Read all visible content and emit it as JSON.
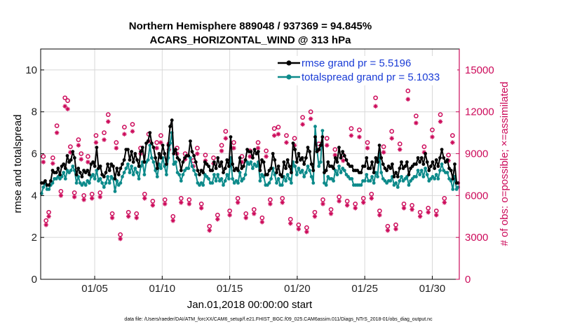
{
  "chart_data": {
    "type": "line",
    "title_line1": "Northern Hemisphere 889048 / 937369 = 94.845%",
    "title_line2": "ACARS_HORIZONTAL_WIND @ 313 hPa",
    "ylabel_left": "rmse and totalspread",
    "ylabel_right": "# of obs: o=possible; ×=assimilated",
    "xlabel": "Jan.01,2018 00:00:00 start",
    "footnote": "data file: /Users/raeder/DAI/ATM_forcXX/CAM6_setup/f.e21.FHIST_BGC.f09_025.CAM6assim.011/Diags_NTrS_2018-01/obs_diag_output.nc",
    "x_tick_labels": [
      "01/05",
      "01/10",
      "01/15",
      "01/20",
      "01/25",
      "01/30"
    ],
    "x_tick_days": [
      5,
      10,
      15,
      20,
      25,
      30
    ],
    "xlim": [
      1,
      32
    ],
    "ylim_left": [
      0,
      11
    ],
    "ylim_right": [
      0,
      16500
    ],
    "y_ticks_left": [
      "0",
      "2",
      "4",
      "6",
      "8",
      "10"
    ],
    "y_ticks_right": [
      "0",
      "3000",
      "6000",
      "9000",
      "12000",
      "15000"
    ],
    "grid": true,
    "legend_position": "top-right",
    "colors": {
      "rmse": "#000000",
      "spread": "#0c8a8a",
      "obs": "#cc0a5a",
      "legend_text": "#1a3cd6"
    },
    "series": [
      {
        "name": "rmse grand pr = 5.5196",
        "key": "rmse",
        "values": [
          4.6,
          4.6,
          4.7,
          4.5,
          4.5,
          4.7,
          5.2,
          5.1,
          5.1,
          5.3,
          5.0,
          5.4,
          5.5,
          5.3,
          5.9,
          5.6,
          5.7,
          6.1,
          5.8,
          5.0,
          5.3,
          5.1,
          4.9,
          5.2,
          5.1,
          5.2,
          5.0,
          5.5,
          5.6,
          5.4,
          6.3,
          5.3,
          5.4,
          5.0,
          4.9,
          5.1,
          5.5,
          5.2,
          5.5,
          5.4,
          4.8,
          5.3,
          5.0,
          5.3,
          5.5,
          5.7,
          6.2,
          6.2,
          5.7,
          6.1,
          5.6,
          6.0,
          5.7,
          5.4,
          6.1,
          6.3,
          5.6,
          6.5,
          6.6,
          7.0,
          6.5,
          6.3,
          5.8,
          5.3,
          6.0,
          5.8,
          6.4,
          6.0,
          5.5,
          6.4,
          7.3,
          7.6,
          6.0,
          6.2,
          5.8,
          5.7,
          5.2,
          5.6,
          5.8,
          5.9,
          5.9,
          6.6,
          6.1,
          5.9,
          5.6,
          5.2,
          5.0,
          5.2,
          5.1,
          5.6,
          5.5,
          5.4,
          5.2,
          5.2,
          5.6,
          5.3,
          5.8,
          5.4,
          5.6,
          5.1,
          5.3,
          5.7,
          5.4,
          6.8,
          5.5,
          5.2,
          5.3,
          5.2,
          5.8,
          5.3,
          5.4,
          5.7,
          6.2,
          6.1,
          6.1,
          5.8,
          6.2,
          6.0,
          6.1,
          5.2,
          5.7,
          5.6,
          5.0,
          5.0,
          5.2,
          5.3,
          6.0,
          5.7,
          5.1,
          5.4,
          5.0,
          4.9,
          5.6,
          5.3,
          5.7,
          5.4,
          5.1,
          6.5,
          6.2,
          5.6,
          6.0,
          5.7,
          5.8,
          5.5,
          5.8,
          6.3,
          6.1,
          5.5,
          5.2,
          6.8,
          6.1,
          6.2,
          6.4,
          6.8,
          5.1,
          5.2,
          5.6,
          5.4,
          5.4,
          5.3,
          5.8,
          5.6,
          6.3,
          5.8,
          6.1,
          5.9,
          5.7,
          5.5,
          5.4,
          5.4,
          5.2,
          5.2,
          5.2,
          5.1,
          5.1,
          5.4,
          5.4,
          5.8,
          5.3,
          5.3,
          5.6,
          5.1,
          5.8,
          5.6,
          6.4,
          5.8,
          5.5,
          5.3,
          5.2,
          5.4,
          5.3,
          5.5,
          4.9,
          5.1,
          4.9,
          5.3,
          5.6,
          5.3,
          5.4,
          5.6,
          5.0,
          5.3,
          5.4,
          5.5,
          5.5,
          5.8,
          5.6,
          5.8,
          5.5,
          6.0,
          5.6,
          5.2,
          5.4,
          5.6,
          5.3,
          5.7,
          5.4,
          5.8,
          6.2,
          5.8,
          5.6,
          5.7,
          5.3,
          5.2,
          4.8,
          5.5,
          4.6,
          4.6
        ]
      },
      {
        "name": "totalspread grand pr = 5.1033",
        "key": "spread",
        "values": [
          4.1,
          4.4,
          4.6,
          4.3,
          4.3,
          4.5,
          4.6,
          4.8,
          4.8,
          4.9,
          4.8,
          4.9,
          5.1,
          4.8,
          5.2,
          5.1,
          5.2,
          5.4,
          5.2,
          4.6,
          4.9,
          4.6,
          4.5,
          4.6,
          4.5,
          4.7,
          4.6,
          4.9,
          5.0,
          4.8,
          5.2,
          4.7,
          4.8,
          4.6,
          4.4,
          4.6,
          4.9,
          4.6,
          4.9,
          4.8,
          4.2,
          4.7,
          4.5,
          4.6,
          4.9,
          5.1,
          5.3,
          5.5,
          5.1,
          5.4,
          5.0,
          5.3,
          5.1,
          4.8,
          5.4,
          5.6,
          5.0,
          5.6,
          5.7,
          6.4,
          5.8,
          5.6,
          5.2,
          4.9,
          5.5,
          5.3,
          5.8,
          5.4,
          5.0,
          5.8,
          6.5,
          7.0,
          5.5,
          5.6,
          5.1,
          5.0,
          4.7,
          5.0,
          5.2,
          5.3,
          5.3,
          5.8,
          5.4,
          5.2,
          5.0,
          4.6,
          4.5,
          4.6,
          4.5,
          5.0,
          4.9,
          4.8,
          4.6,
          4.6,
          5.0,
          4.7,
          5.0,
          4.7,
          4.8,
          4.5,
          4.7,
          5.0,
          4.8,
          5.8,
          4.8,
          4.6,
          4.7,
          4.6,
          5.1,
          4.7,
          4.8,
          5.0,
          5.6,
          5.5,
          5.6,
          5.3,
          5.5,
          5.4,
          5.6,
          4.7,
          5.0,
          4.9,
          4.5,
          4.5,
          4.6,
          4.8,
          5.3,
          5.0,
          4.6,
          4.8,
          4.5,
          4.5,
          4.9,
          4.7,
          5.0,
          4.8,
          4.6,
          5.6,
          5.4,
          5.0,
          5.3,
          5.1,
          5.2,
          4.9,
          5.1,
          5.4,
          5.2,
          4.9,
          4.6,
          7.3,
          6.2,
          5.4,
          5.6,
          7.1,
          4.6,
          4.5,
          4.9,
          4.8,
          4.8,
          4.7,
          5.2,
          5.0,
          5.4,
          5.1,
          5.3,
          5.2,
          5.0,
          4.9,
          4.8,
          4.8,
          4.5,
          4.5,
          4.5,
          4.5,
          4.5,
          4.7,
          4.7,
          5.0,
          4.7,
          4.7,
          4.9,
          4.6,
          5.1,
          4.9,
          6.0,
          5.1,
          4.8,
          4.7,
          4.6,
          4.7,
          4.7,
          4.9,
          4.5,
          4.6,
          4.4,
          4.7,
          4.9,
          4.7,
          4.8,
          4.9,
          4.5,
          4.7,
          4.8,
          4.9,
          4.9,
          5.2,
          5.0,
          5.2,
          4.9,
          5.3,
          5.0,
          4.7,
          4.8,
          4.9,
          4.8,
          5.0,
          4.8,
          5.2,
          5.5,
          5.2,
          5.1,
          5.1,
          4.8,
          4.7,
          4.3,
          4.9,
          4.3,
          4.4
        ]
      }
    ],
    "obs_possible": [
      {
        "d": 1.2,
        "v": 8800
      },
      {
        "d": 1.4,
        "v": 4200
      },
      {
        "d": 1.6,
        "v": 4800
      },
      {
        "d": 1.9,
        "v": 8700
      },
      {
        "d": 2.2,
        "v": 11000
      },
      {
        "d": 2.5,
        "v": 6300
      },
      {
        "d": 2.8,
        "v": 13000
      },
      {
        "d": 3.0,
        "v": 12800
      },
      {
        "d": 3.2,
        "v": 9500
      },
      {
        "d": 3.5,
        "v": 6200
      },
      {
        "d": 3.8,
        "v": 10000
      },
      {
        "d": 4.0,
        "v": 9000
      },
      {
        "d": 4.2,
        "v": 6000
      },
      {
        "d": 4.5,
        "v": 8800
      },
      {
        "d": 4.8,
        "v": 6100
      },
      {
        "d": 5.1,
        "v": 10300
      },
      {
        "d": 5.4,
        "v": 6200
      },
      {
        "d": 5.7,
        "v": 10500
      },
      {
        "d": 6.0,
        "v": 11800
      },
      {
        "d": 6.3,
        "v": 4700
      },
      {
        "d": 6.6,
        "v": 9800
      },
      {
        "d": 6.9,
        "v": 3200
      },
      {
        "d": 7.2,
        "v": 10900
      },
      {
        "d": 7.5,
        "v": 4800
      },
      {
        "d": 7.8,
        "v": 11100
      },
      {
        "d": 8.1,
        "v": 4700
      },
      {
        "d": 8.4,
        "v": 9400
      },
      {
        "d": 8.7,
        "v": 6100
      },
      {
        "d": 9.0,
        "v": 10400
      },
      {
        "d": 9.3,
        "v": 5600
      },
      {
        "d": 9.6,
        "v": 9800
      },
      {
        "d": 9.9,
        "v": 10300
      },
      {
        "d": 10.2,
        "v": 5700
      },
      {
        "d": 10.5,
        "v": 9700
      },
      {
        "d": 10.8,
        "v": 4500
      },
      {
        "d": 11.1,
        "v": 9400
      },
      {
        "d": 11.4,
        "v": 5800
      },
      {
        "d": 11.7,
        "v": 9000
      },
      {
        "d": 12.0,
        "v": 5700
      },
      {
        "d": 12.3,
        "v": 8500
      },
      {
        "d": 12.6,
        "v": 9400
      },
      {
        "d": 12.9,
        "v": 5400
      },
      {
        "d": 13.2,
        "v": 8900
      },
      {
        "d": 13.5,
        "v": 3800
      },
      {
        "d": 13.8,
        "v": 8700
      },
      {
        "d": 14.1,
        "v": 4600
      },
      {
        "d": 14.4,
        "v": 9600
      },
      {
        "d": 14.7,
        "v": 10600
      },
      {
        "d": 15.0,
        "v": 4900
      },
      {
        "d": 15.3,
        "v": 9800
      },
      {
        "d": 15.6,
        "v": 5800
      },
      {
        "d": 15.9,
        "v": 8800
      },
      {
        "d": 16.2,
        "v": 4700
      },
      {
        "d": 16.5,
        "v": 9200
      },
      {
        "d": 16.8,
        "v": 5000
      },
      {
        "d": 17.1,
        "v": 9800
      },
      {
        "d": 17.4,
        "v": 4400
      },
      {
        "d": 17.7,
        "v": 9200
      },
      {
        "d": 18.0,
        "v": 5700
      },
      {
        "d": 18.3,
        "v": 10800
      },
      {
        "d": 18.6,
        "v": 10900
      },
      {
        "d": 18.9,
        "v": 5800
      },
      {
        "d": 19.2,
        "v": 10300
      },
      {
        "d": 19.5,
        "v": 4300
      },
      {
        "d": 19.8,
        "v": 10100
      },
      {
        "d": 20.1,
        "v": 3900
      },
      {
        "d": 20.4,
        "v": 11600
      },
      {
        "d": 20.7,
        "v": 3700
      },
      {
        "d": 21.0,
        "v": 12000
      },
      {
        "d": 21.3,
        "v": 4800
      },
      {
        "d": 21.6,
        "v": 9700
      },
      {
        "d": 21.9,
        "v": 5700
      },
      {
        "d": 22.2,
        "v": 10100
      },
      {
        "d": 22.5,
        "v": 5000
      },
      {
        "d": 22.8,
        "v": 9300
      },
      {
        "d": 23.1,
        "v": 5900
      },
      {
        "d": 23.4,
        "v": 8900
      },
      {
        "d": 23.7,
        "v": 5600
      },
      {
        "d": 24.0,
        "v": 10800
      },
      {
        "d": 24.3,
        "v": 5400
      },
      {
        "d": 24.6,
        "v": 10700
      },
      {
        "d": 24.9,
        "v": 5800
      },
      {
        "d": 25.2,
        "v": 9800
      },
      {
        "d": 25.5,
        "v": 6100
      },
      {
        "d": 25.8,
        "v": 13000
      },
      {
        "d": 26.1,
        "v": 4900
      },
      {
        "d": 26.4,
        "v": 9500
      },
      {
        "d": 26.7,
        "v": 3800
      },
      {
        "d": 27.0,
        "v": 10600
      },
      {
        "d": 27.3,
        "v": 3900
      },
      {
        "d": 27.6,
        "v": 9700
      },
      {
        "d": 27.9,
        "v": 5400
      },
      {
        "d": 28.2,
        "v": 13500
      },
      {
        "d": 28.5,
        "v": 5300
      },
      {
        "d": 28.8,
        "v": 11700
      },
      {
        "d": 29.1,
        "v": 4800
      },
      {
        "d": 29.4,
        "v": 9500
      },
      {
        "d": 29.7,
        "v": 5100
      },
      {
        "d": 30.0,
        "v": 10700
      },
      {
        "d": 30.3,
        "v": 4900
      },
      {
        "d": 30.6,
        "v": 11800
      },
      {
        "d": 30.9,
        "v": 5800
      },
      {
        "d": 31.2,
        "v": 8900
      },
      {
        "d": 31.5,
        "v": 10300
      }
    ],
    "obs_assimilated": [
      {
        "d": 1.2,
        "v": 8400
      },
      {
        "d": 1.4,
        "v": 3900
      },
      {
        "d": 1.6,
        "v": 4500
      },
      {
        "d": 1.9,
        "v": 8300
      },
      {
        "d": 2.2,
        "v": 10500
      },
      {
        "d": 2.5,
        "v": 6000
      },
      {
        "d": 2.8,
        "v": 12400
      },
      {
        "d": 3.0,
        "v": 12200
      },
      {
        "d": 3.2,
        "v": 9100
      },
      {
        "d": 3.5,
        "v": 5900
      },
      {
        "d": 3.8,
        "v": 9600
      },
      {
        "d": 4.0,
        "v": 8600
      },
      {
        "d": 4.2,
        "v": 5700
      },
      {
        "d": 4.5,
        "v": 8400
      },
      {
        "d": 4.8,
        "v": 5800
      },
      {
        "d": 5.1,
        "v": 9800
      },
      {
        "d": 5.4,
        "v": 5900
      },
      {
        "d": 5.7,
        "v": 10000
      },
      {
        "d": 6.0,
        "v": 11300
      },
      {
        "d": 6.3,
        "v": 4400
      },
      {
        "d": 6.6,
        "v": 9400
      },
      {
        "d": 6.9,
        "v": 2900
      },
      {
        "d": 7.2,
        "v": 10400
      },
      {
        "d": 7.5,
        "v": 4500
      },
      {
        "d": 7.8,
        "v": 10600
      },
      {
        "d": 8.1,
        "v": 4400
      },
      {
        "d": 8.4,
        "v": 9000
      },
      {
        "d": 8.7,
        "v": 5800
      },
      {
        "d": 9.0,
        "v": 9900
      },
      {
        "d": 9.3,
        "v": 5300
      },
      {
        "d": 9.6,
        "v": 9400
      },
      {
        "d": 9.9,
        "v": 9800
      },
      {
        "d": 10.2,
        "v": 5400
      },
      {
        "d": 10.5,
        "v": 9300
      },
      {
        "d": 10.8,
        "v": 4200
      },
      {
        "d": 11.1,
        "v": 9000
      },
      {
        "d": 11.4,
        "v": 5500
      },
      {
        "d": 11.7,
        "v": 8600
      },
      {
        "d": 12.0,
        "v": 5400
      },
      {
        "d": 12.3,
        "v": 8100
      },
      {
        "d": 12.6,
        "v": 9000
      },
      {
        "d": 12.9,
        "v": 5100
      },
      {
        "d": 13.2,
        "v": 8500
      },
      {
        "d": 13.5,
        "v": 3500
      },
      {
        "d": 13.8,
        "v": 8300
      },
      {
        "d": 14.1,
        "v": 4300
      },
      {
        "d": 14.4,
        "v": 9200
      },
      {
        "d": 14.7,
        "v": 10100
      },
      {
        "d": 15.0,
        "v": 4600
      },
      {
        "d": 15.3,
        "v": 9400
      },
      {
        "d": 15.6,
        "v": 5500
      },
      {
        "d": 15.9,
        "v": 8400
      },
      {
        "d": 16.2,
        "v": 4400
      },
      {
        "d": 16.5,
        "v": 8800
      },
      {
        "d": 16.8,
        "v": 4700
      },
      {
        "d": 17.1,
        "v": 9400
      },
      {
        "d": 17.4,
        "v": 4100
      },
      {
        "d": 17.7,
        "v": 8800
      },
      {
        "d": 18.0,
        "v": 5400
      },
      {
        "d": 18.3,
        "v": 10300
      },
      {
        "d": 18.6,
        "v": 10400
      },
      {
        "d": 18.9,
        "v": 5500
      },
      {
        "d": 19.2,
        "v": 9800
      },
      {
        "d": 19.5,
        "v": 4000
      },
      {
        "d": 19.8,
        "v": 9600
      },
      {
        "d": 20.1,
        "v": 3600
      },
      {
        "d": 20.4,
        "v": 11100
      },
      {
        "d": 20.7,
        "v": 3400
      },
      {
        "d": 21.0,
        "v": 11500
      },
      {
        "d": 21.3,
        "v": 4500
      },
      {
        "d": 21.6,
        "v": 9300
      },
      {
        "d": 21.9,
        "v": 5400
      },
      {
        "d": 22.2,
        "v": 9600
      },
      {
        "d": 22.5,
        "v": 4700
      },
      {
        "d": 22.8,
        "v": 8900
      },
      {
        "d": 23.1,
        "v": 5600
      },
      {
        "d": 23.4,
        "v": 8500
      },
      {
        "d": 23.7,
        "v": 5300
      },
      {
        "d": 24.0,
        "v": 10300
      },
      {
        "d": 24.3,
        "v": 5100
      },
      {
        "d": 24.6,
        "v": 10200
      },
      {
        "d": 24.9,
        "v": 5500
      },
      {
        "d": 25.2,
        "v": 9400
      },
      {
        "d": 25.5,
        "v": 5800
      },
      {
        "d": 25.8,
        "v": 12400
      },
      {
        "d": 26.1,
        "v": 4600
      },
      {
        "d": 26.4,
        "v": 9100
      },
      {
        "d": 26.7,
        "v": 3500
      },
      {
        "d": 27.0,
        "v": 10100
      },
      {
        "d": 27.3,
        "v": 3600
      },
      {
        "d": 27.6,
        "v": 9300
      },
      {
        "d": 27.9,
        "v": 5100
      },
      {
        "d": 28.2,
        "v": 12900
      },
      {
        "d": 28.5,
        "v": 5000
      },
      {
        "d": 28.8,
        "v": 11200
      },
      {
        "d": 29.1,
        "v": 4500
      },
      {
        "d": 29.4,
        "v": 9100
      },
      {
        "d": 29.7,
        "v": 4800
      },
      {
        "d": 30.0,
        "v": 10200
      },
      {
        "d": 30.3,
        "v": 4600
      },
      {
        "d": 30.6,
        "v": 11300
      },
      {
        "d": 30.9,
        "v": 5500
      },
      {
        "d": 31.2,
        "v": 8500
      },
      {
        "d": 31.5,
        "v": 9800
      }
    ]
  }
}
